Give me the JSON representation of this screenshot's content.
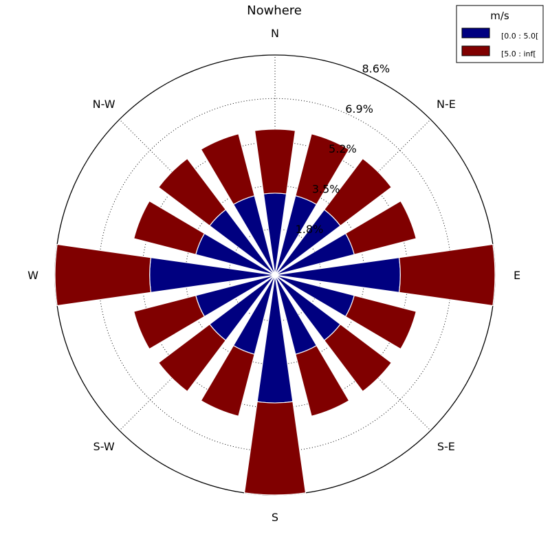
{
  "chart_data": {
    "type": "windrose",
    "title": "Nowhere",
    "directions": [
      "N",
      "N-E",
      "E",
      "S-E",
      "S",
      "S-W",
      "W",
      "N-W"
    ],
    "sector_centers_deg": [
      0,
      22.5,
      45,
      67.5,
      90,
      112.5,
      135,
      157.5,
      180,
      202.5,
      225,
      247.5,
      270,
      292.5,
      315,
      337.5
    ],
    "radial_ticks": [
      "1.8%",
      "3.5%",
      "5.2%",
      "6.9%",
      "8.6%"
    ],
    "radial_tick_values": [
      1.8,
      3.5,
      5.2,
      6.9,
      8.6
    ],
    "rmax": 8.6,
    "grid": true,
    "legend": {
      "title": "m/s",
      "placement": "top-right",
      "entries": [
        "[0.0 : 5.0[",
        "[5.0 : inf["
      ]
    },
    "series": [
      {
        "name": "[0.0 : 5.0[",
        "color": "#000080",
        "values": [
          3.2,
          3.2,
          3.2,
          3.2,
          4.9,
          3.2,
          3.2,
          3.2,
          5.0,
          3.2,
          3.2,
          3.2,
          4.9,
          3.2,
          3.2,
          3.2
        ]
      },
      {
        "name": "[5.0 : inf[",
        "color": "#800000",
        "values": [
          2.5,
          2.5,
          2.5,
          2.5,
          3.7,
          2.5,
          2.5,
          2.5,
          3.6,
          2.5,
          2.5,
          2.5,
          3.7,
          2.5,
          2.5,
          2.5
        ]
      }
    ]
  }
}
